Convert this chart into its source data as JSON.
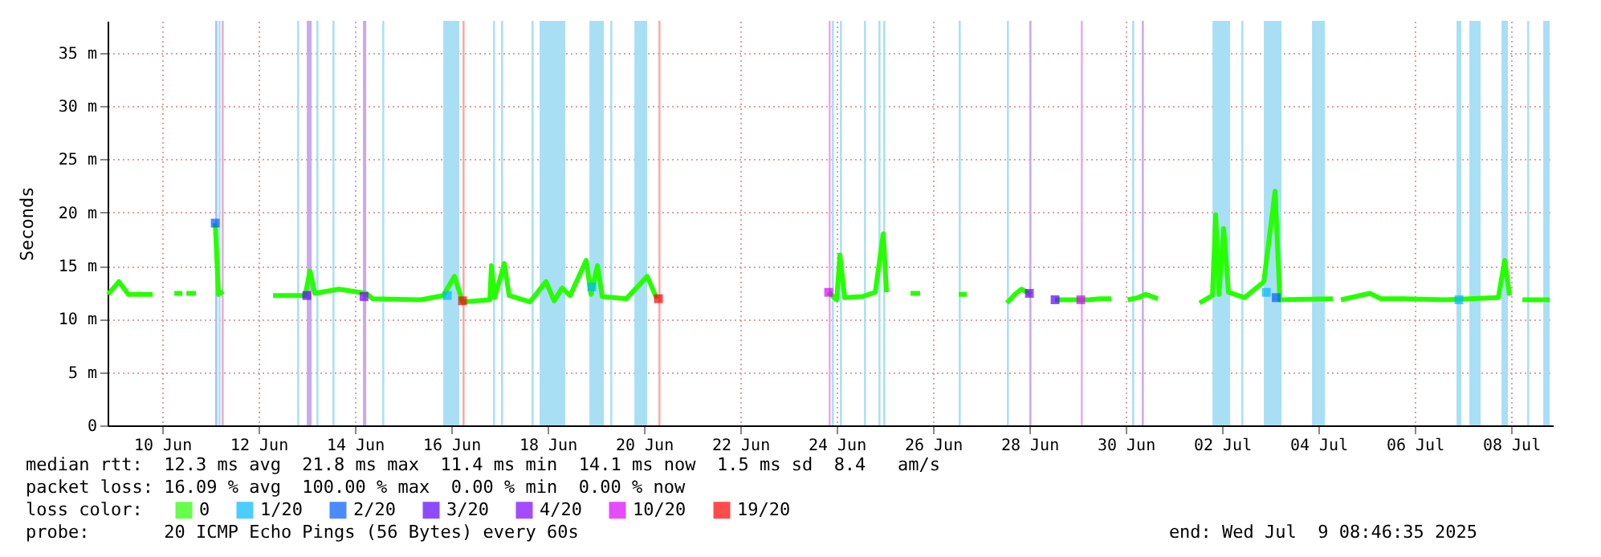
{
  "chart_data": {
    "type": "line",
    "ylabel": "Seconds",
    "legend_title": "loss color:",
    "legend": "bottom",
    "grid": true,
    "marker": "none",
    "line_style": "solid",
    "xlim": [
      "2025-06-09T08:46",
      "2025-07-09T08:46"
    ],
    "xticks": [
      {
        "value": "2025-06-10T12:00",
        "label": "10 Jun"
      },
      {
        "value": "2025-06-12T12:00",
        "label": "12 Jun"
      },
      {
        "value": "2025-06-14T12:00",
        "label": "14 Jun"
      },
      {
        "value": "2025-06-16T12:00",
        "label": "16 Jun"
      },
      {
        "value": "2025-06-18T12:00",
        "label": "18 Jun"
      },
      {
        "value": "2025-06-20T12:00",
        "label": "20 Jun"
      },
      {
        "value": "2025-06-22T12:00",
        "label": "22 Jun"
      },
      {
        "value": "2025-06-24T12:00",
        "label": "24 Jun"
      },
      {
        "value": "2025-06-26T12:00",
        "label": "26 Jun"
      },
      {
        "value": "2025-06-28T12:00",
        "label": "28 Jun"
      },
      {
        "value": "2025-06-30T12:00",
        "label": "30 Jun"
      },
      {
        "value": "2025-07-02T12:00",
        "label": "02 Jul"
      },
      {
        "value": "2025-07-04T12:00",
        "label": "04 Jul"
      },
      {
        "value": "2025-07-06T12:00",
        "label": "06 Jul"
      },
      {
        "value": "2025-07-08T12:00",
        "label": "08 Jul"
      }
    ],
    "ylim": [
      0,
      38
    ],
    "yticks": [
      0,
      {
        "value": 5,
        "label": "5 m"
      },
      {
        "value": 10,
        "label": "10 m"
      },
      {
        "value": 15,
        "label": "15 m"
      },
      {
        "value": 20,
        "label": "20 m"
      },
      {
        "value": 25,
        "label": "25 m"
      },
      {
        "value": 30,
        "label": "30 m"
      },
      {
        "value": 35,
        "label": "35 m"
      }
    ],
    "series": [
      {
        "name": "0",
        "color": "#26ff00",
        "x": [
          "2025-06-09T09:00",
          "2025-06-09T14:24",
          "2025-06-09T19:12",
          "2025-06-10T07:12",
          "2025-06-10T12:00",
          "2025-06-10T18:00",
          "2025-06-10T22:00",
          "2025-06-10T23:00",
          "2025-06-11T00:00",
          "2025-06-11T04:48",
          "2025-06-11T08:00",
          "2025-06-11T14:24",
          "2025-06-11T16:00",
          "2025-06-11T18:24",
          "2025-06-12T00:00",
          "2025-06-12T19:12",
          "2025-06-13T11:12",
          "2025-06-13T13:36",
          "2025-06-13T16:00",
          "2025-06-14T04:00",
          "2025-06-14T17:36",
          "2025-06-14T20:48",
          "2025-06-15T20:48",
          "2025-06-16T08:00",
          "2025-06-16T13:36",
          "2025-06-16T17:36",
          "2025-06-17T07:12",
          "2025-06-17T08:00",
          "2025-06-17T09:36",
          "2025-06-17T14:24",
          "2025-06-17T16:48",
          "2025-06-18T03:12",
          "2025-06-18T11:12",
          "2025-06-18T15:12",
          "2025-06-18T19:12",
          "2025-06-18T23:12",
          "2025-06-19T07:12",
          "2025-06-19T09:36",
          "2025-06-19T12:48",
          "2025-06-19T15:12",
          "2025-06-20T03:12",
          "2025-06-20T13:36",
          "2025-06-20T18:24",
          "2025-06-21T00:00",
          "2025-06-24T08:00",
          "2025-06-24T12:00",
          "2025-06-24T13:36",
          "2025-06-24T16:00",
          "2025-06-25T00:48",
          "2025-06-25T07:12",
          "2025-06-25T11:12",
          "2025-06-25T12:48",
          "2025-06-25T18:00",
          "2025-06-26T00:48",
          "2025-06-26T05:36",
          "2025-06-26T12:00",
          "2025-06-27T00:48",
          "2025-06-27T04:48",
          "2025-06-27T10:00",
          "2025-06-28T00:48",
          "2025-06-28T04:48",
          "2025-06-28T08:00",
          "2025-06-28T12:48",
          "2025-06-28T18:00",
          "2025-06-29T00:48",
          "2025-06-29T17:36",
          "2025-06-29T23:12",
          "2025-06-30T04:48",
          "2025-06-30T10:00",
          "2025-06-30T13:00",
          "2025-06-30T18:00",
          "2025-06-30T22:00",
          "2025-07-01T04:00",
          "2025-07-01T08:00",
          "2025-07-02T00:48",
          "2025-07-02T07:12",
          "2025-07-02T08:48",
          "2025-07-02T10:24",
          "2025-07-02T12:48",
          "2025-07-02T15:12",
          "2025-07-02T23:12",
          "2025-07-03T08:48",
          "2025-07-03T14:24",
          "2025-07-03T16:48",
          "2025-07-04T19:12",
          "2025-07-04T21:00",
          "2025-07-04T23:12",
          "2025-07-05T13:36",
          "2025-07-05T19:12",
          "2025-07-06T06:24",
          "2025-07-07T03:12",
          "2025-07-08T05:36",
          "2025-07-08T08:48",
          "2025-07-08T11:12",
          "2025-07-08T14:00",
          "2025-07-08T17:36",
          "2025-07-09T07:12"
        ],
        "values": [
          12.3,
          13.5,
          12.3,
          12.3,
          null,
          12.4,
          12.4,
          null,
          12.4,
          12.4,
          null,
          19,
          12.3,
          12.6,
          null,
          12.2,
          12.2,
          14.5,
          12.4,
          12.8,
          12.4,
          11.9,
          11.8,
          12.2,
          14,
          11.6,
          11.8,
          15,
          12,
          15.2,
          12.2,
          11.6,
          13.5,
          11.7,
          12.9,
          12.2,
          15.5,
          12.3,
          15,
          12.1,
          11.9,
          14,
          11.9,
          null,
          12.5,
          11.8,
          16,
          12,
          12.1,
          12.5,
          18,
          12.5,
          null,
          12.4,
          12.4,
          null,
          12.3,
          12.3,
          null,
          11.5,
          12.3,
          12.8,
          12.3,
          null,
          11.8,
          11.8,
          11.9,
          11.9,
          null,
          11.8,
          12,
          12.3,
          11.9,
          null,
          11.5,
          12.2,
          19.8,
          12.3,
          18.5,
          12.5,
          12,
          13.5,
          22,
          11.8,
          11.9,
          null,
          11.8,
          12.4,
          11.9,
          11.9,
          11.8,
          12,
          15.5,
          12.2,
          null,
          11.8,
          11.8
        ]
      },
      {
        "name": "1/20",
        "color": "#00b8ff",
        "type": "scatter",
        "marker": "square",
        "x": [
          "2025-06-16T10:00",
          "2025-06-19T10:00",
          "2025-07-03T10:00",
          "2025-07-07T10:00"
        ],
        "values": [
          12.2,
          13,
          12.5,
          11.8
        ]
      },
      {
        "name": "2/20",
        "color": "#0059ff",
        "type": "scatter",
        "marker": "square",
        "x": [
          "2025-06-11T14:24",
          "2025-07-03T15:00"
        ],
        "values": [
          19,
          12
        ]
      },
      {
        "name": "3/20",
        "color": "#5e00ff",
        "type": "scatter",
        "marker": "square",
        "x": [
          "2025-06-13T12:00",
          "2025-06-29T00:48"
        ],
        "values": [
          12.2,
          11.8
        ]
      },
      {
        "name": "4/20",
        "color": "#7e00ff",
        "type": "scatter",
        "marker": "square",
        "x": [
          "2025-06-14T16:30",
          "2025-06-28T12:00"
        ],
        "values": [
          12.1,
          12.4
        ]
      },
      {
        "name": "10/20",
        "color": "#dd00ff",
        "type": "scatter",
        "marker": "square",
        "x": [
          "2025-06-24T08:00",
          "2025-06-29T13:36"
        ],
        "values": [
          12.5,
          11.8
        ]
      },
      {
        "name": "19/20",
        "color": "#ff0000",
        "type": "scatter",
        "marker": "square",
        "x": [
          "2025-06-20T19:12",
          "2025-06-16T17:36"
        ],
        "values": [
          11.9,
          11.7
        ]
      }
    ],
    "bands": [
      {
        "axis": "x",
        "from": "2025-06-11T14:24",
        "to": "2025-06-11T15:24",
        "color": "#a0c0ff"
      },
      {
        "axis": "x",
        "from": "2025-06-11T16:00",
        "to": "2025-06-11T17:00",
        "color": "#a8dff5"
      },
      {
        "axis": "x",
        "from": "2025-06-11T17:36",
        "to": "2025-06-11T18:36",
        "color": "#f0a8c8"
      },
      {
        "axis": "x",
        "from": "2025-06-13T07:12",
        "to": "2025-06-13T08:12",
        "color": "#a8dff5"
      },
      {
        "axis": "x",
        "from": "2025-06-13T12:00",
        "to": "2025-06-13T14:24",
        "color": "#c8a8f0"
      },
      {
        "axis": "x",
        "from": "2025-06-13T16:48",
        "to": "2025-06-13T17:48",
        "color": "#a8dff5"
      },
      {
        "axis": "x",
        "from": "2025-06-14T00:48",
        "to": "2025-06-14T01:48",
        "color": "#a8dff5"
      },
      {
        "axis": "x",
        "from": "2025-06-14T16:00",
        "to": "2025-06-14T17:36",
        "color": "#c8a8f0"
      },
      {
        "axis": "x",
        "from": "2025-06-15T01:36",
        "to": "2025-06-15T02:36",
        "color": "#a8dff5"
      },
      {
        "axis": "x",
        "from": "2025-06-16T08:00",
        "to": "2025-06-16T16:00",
        "color": "#a8dff5"
      },
      {
        "axis": "x",
        "from": "2025-06-16T17:36",
        "to": "2025-06-16T18:36",
        "color": "#f8a8a8"
      },
      {
        "axis": "x",
        "from": "2025-06-17T08:48",
        "to": "2025-06-17T09:48",
        "color": "#a8dff5"
      },
      {
        "axis": "x",
        "from": "2025-06-17T12:48",
        "to": "2025-06-17T13:48",
        "color": "#a8dff5"
      },
      {
        "axis": "x",
        "from": "2025-06-18T04:00",
        "to": "2025-06-18T05:00",
        "color": "#a8dff5"
      },
      {
        "axis": "x",
        "from": "2025-06-18T08:00",
        "to": "2025-06-18T20:48",
        "color": "#a8dff5"
      },
      {
        "axis": "x",
        "from": "2025-06-19T08:48",
        "to": "2025-06-19T16:00",
        "color": "#a8dff5"
      },
      {
        "axis": "x",
        "from": "2025-06-19T19:12",
        "to": "2025-06-19T20:12",
        "color": "#a8dff5"
      },
      {
        "axis": "x",
        "from": "2025-06-20T07:12",
        "to": "2025-06-20T13:36",
        "color": "#a8dff5"
      },
      {
        "axis": "x",
        "from": "2025-06-20T19:12",
        "to": "2025-06-20T20:12",
        "color": "#f8a8a8"
      },
      {
        "axis": "x",
        "from": "2025-06-24T08:00",
        "to": "2025-06-24T09:00",
        "color": "#e8a8f0"
      },
      {
        "axis": "x",
        "from": "2025-06-24T09:36",
        "to": "2025-06-24T10:36",
        "color": "#a8dff5"
      },
      {
        "axis": "x",
        "from": "2025-06-24T13:36",
        "to": "2025-06-24T14:36",
        "color": "#a8dff5"
      },
      {
        "axis": "x",
        "from": "2025-06-25T01:36",
        "to": "2025-06-25T02:36",
        "color": "#a8dff5"
      },
      {
        "axis": "x",
        "from": "2025-06-25T08:48",
        "to": "2025-06-25T09:48",
        "color": "#a8dff5"
      },
      {
        "axis": "x",
        "from": "2025-06-25T11:12",
        "to": "2025-06-25T12:12",
        "color": "#a8dff5"
      },
      {
        "axis": "x",
        "from": "2025-06-27T00:48",
        "to": "2025-06-27T01:48",
        "color": "#a8dff5"
      },
      {
        "axis": "x",
        "from": "2025-06-28T00:48",
        "to": "2025-06-28T01:48",
        "color": "#a8dff5"
      },
      {
        "axis": "x",
        "from": "2025-06-28T12:00",
        "to": "2025-06-28T13:00",
        "color": "#c8a8f0"
      },
      {
        "axis": "x",
        "from": "2025-06-29T13:36",
        "to": "2025-06-29T14:36",
        "color": "#e8a8f0"
      },
      {
        "axis": "x",
        "from": "2025-06-30T15:12",
        "to": "2025-06-30T16:12",
        "color": "#a8dff5"
      },
      {
        "axis": "x",
        "from": "2025-06-30T20:00",
        "to": "2025-06-30T21:00",
        "color": "#c8a8f0"
      },
      {
        "axis": "x",
        "from": "2025-07-02T07:12",
        "to": "2025-07-02T16:00",
        "color": "#a8dff5"
      },
      {
        "axis": "x",
        "from": "2025-07-02T21:36",
        "to": "2025-07-02T22:36",
        "color": "#a8dff5"
      },
      {
        "axis": "x",
        "from": "2025-07-03T08:48",
        "to": "2025-07-03T17:36",
        "color": "#a8dff5"
      },
      {
        "axis": "x",
        "from": "2025-07-04T08:48",
        "to": "2025-07-04T15:12",
        "color": "#a8dff5"
      },
      {
        "axis": "x",
        "from": "2025-07-07T08:48",
        "to": "2025-07-07T11:12",
        "color": "#a8dff5"
      },
      {
        "axis": "x",
        "from": "2025-07-07T15:12",
        "to": "2025-07-07T20:48",
        "color": "#a8dff5"
      },
      {
        "axis": "x",
        "from": "2025-07-08T07:12",
        "to": "2025-07-08T10:24",
        "color": "#a8dff5"
      },
      {
        "axis": "x",
        "from": "2025-07-08T20:00",
        "to": "2025-07-08T21:00",
        "color": "#a8dff5"
      },
      {
        "axis": "x",
        "from": "2025-07-09T04:00",
        "to": "2025-07-09T07:12",
        "color": "#a8dff5"
      }
    ],
    "annotations": [
      "median rtt:  12.3 ms avg  21.8 ms max  11.4 ms min  14.1 ms now  1.5 ms sd  8.4   am/s",
      "packet loss: 16.09 % avg  100.00 % max  0.00 % min  0.00 % now",
      "probe:       20 ICMP Echo Pings (56 Bytes) every 60s",
      "end: Wed Jul  9 08:46:35 2025"
    ]
  }
}
